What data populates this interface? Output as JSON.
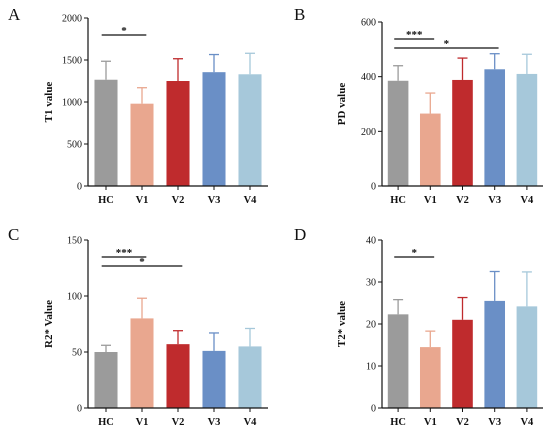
{
  "colors": {
    "HC": "#9b9b9b",
    "V1": "#e9a78f",
    "V2": "#bf2b2d",
    "V3": "#6a8fc6",
    "V4": "#a6c8da",
    "axis": "#111111"
  },
  "chart_data": [
    {
      "type": "bar",
      "panel": "A",
      "ylabel": "T1 value",
      "categories": [
        "HC",
        "V1",
        "V2",
        "V3",
        "V4"
      ],
      "values": [
        1265,
        980,
        1250,
        1355,
        1330
      ],
      "errors": [
        220,
        190,
        265,
        210,
        250
      ],
      "ylim": [
        0,
        2000
      ],
      "yticks": [
        0,
        500,
        1000,
        1500,
        2000
      ],
      "significance": [
        {
          "from": "HC",
          "to": "V1",
          "label": "*"
        }
      ]
    },
    {
      "type": "bar",
      "panel": "B",
      "ylabel": "PD value",
      "categories": [
        "HC",
        "V1",
        "V2",
        "V3",
        "V4"
      ],
      "values": [
        385,
        265,
        388,
        427,
        410
      ],
      "errors": [
        55,
        75,
        80,
        57,
        72
      ],
      "ylim": [
        0,
        600
      ],
      "yticks": [
        0,
        200,
        400,
        600
      ],
      "significance": [
        {
          "from": "HC",
          "to": "V1",
          "label": "***"
        },
        {
          "from": "HC",
          "to": "V3",
          "label": "*"
        }
      ]
    },
    {
      "type": "bar",
      "panel": "C",
      "ylabel": "R2* Value",
      "categories": [
        "HC",
        "V1",
        "V2",
        "V3",
        "V4"
      ],
      "values": [
        50,
        80,
        57,
        51,
        55
      ],
      "errors": [
        6,
        18,
        12,
        16,
        16
      ],
      "ylim": [
        0,
        150
      ],
      "yticks": [
        0,
        50,
        100,
        150
      ],
      "significance": [
        {
          "from": "HC",
          "to": "V1",
          "label": "***"
        },
        {
          "from": "HC",
          "to": "V2",
          "label": "*"
        }
      ]
    },
    {
      "type": "bar",
      "panel": "D",
      "ylabel": "T2* value",
      "categories": [
        "HC",
        "V1",
        "V2",
        "V3",
        "V4"
      ],
      "values": [
        22.3,
        14.5,
        21,
        25.5,
        24.2
      ],
      "errors": [
        3.5,
        3.8,
        5.3,
        7,
        8.2
      ],
      "ylim": [
        0,
        40
      ],
      "yticks": [
        0,
        10,
        20,
        30,
        40
      ],
      "significance": [
        {
          "from": "HC",
          "to": "V1",
          "label": "*"
        }
      ]
    }
  ]
}
